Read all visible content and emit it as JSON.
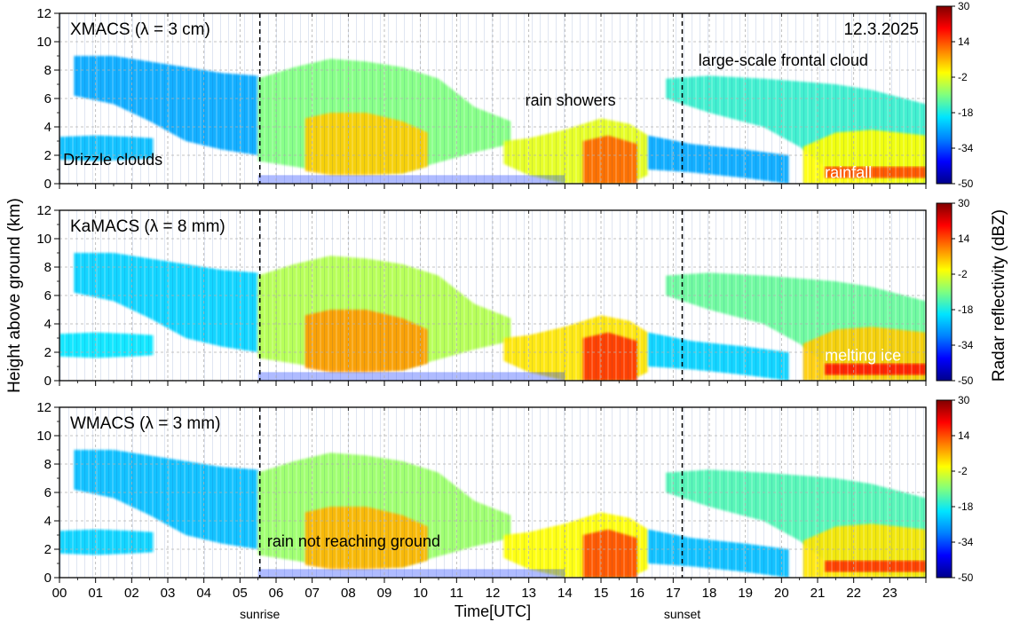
{
  "figure": {
    "ylabel": "Height above ground (km)",
    "xlabel": "Time[UTC]",
    "colorbar_label": "Radar reflectivity (dBZ)",
    "date": "12.3.2025"
  },
  "chart_data": {
    "type": "heatmap",
    "x_range": [
      0,
      24
    ],
    "x_ticks": [
      "00",
      "01",
      "02",
      "03",
      "04",
      "05",
      "06",
      "07",
      "08",
      "09",
      "10",
      "11",
      "12",
      "13",
      "14",
      "15",
      "16",
      "17",
      "18",
      "19",
      "20",
      "21",
      "22",
      "23"
    ],
    "y_range": [
      0,
      12
    ],
    "y_ticks": [
      "0",
      "2",
      "4",
      "6",
      "8",
      "10",
      "12"
    ],
    "grid": true,
    "colorbar": {
      "range": [
        -50,
        30
      ],
      "ticks": [
        "30",
        "14",
        "-2",
        "-18",
        "-34",
        "-50"
      ],
      "colors": [
        "#00008b",
        "#0000ff",
        "#0080ff",
        "#00e5ff",
        "#7fff7f",
        "#ffff00",
        "#ff8000",
        "#ff0000",
        "#800000"
      ]
    },
    "events": [
      {
        "time": 5.55,
        "label": "sunrise"
      },
      {
        "time": 17.25,
        "label": "sunset"
      }
    ],
    "panels": [
      {
        "title": "XMACS (λ = 3 cm)",
        "annotations": [
          {
            "text": "Drizzle clouds",
            "x": 0.1,
            "y": 1.3,
            "color": "#000000"
          },
          {
            "text": "rain showers",
            "x": 12.9,
            "y": 5.5,
            "color": "#000000"
          },
          {
            "text": "large-scale frontal cloud",
            "x": 17.7,
            "y": 8.3,
            "color": "#000000"
          },
          {
            "text": "rainfall",
            "x": 21.2,
            "y": 0.4,
            "color": "#ffffff"
          }
        ]
      },
      {
        "title": "KaMACS (λ = 8 mm)",
        "annotations": [
          {
            "text": "melting ice",
            "x": 21.2,
            "y": 1.4,
            "color": "#ffffff"
          }
        ]
      },
      {
        "title": "WMACS (λ = 3 mm)",
        "annotations": [
          {
            "text": "rain not reaching ground",
            "x": 5.75,
            "y": 2.2,
            "color": "#000000"
          }
        ]
      }
    ]
  }
}
